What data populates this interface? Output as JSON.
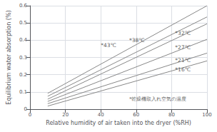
{
  "chart_data": {
    "type": "line",
    "xlabel": "Relative humidity of air taken into the dryer (%RH)",
    "ylabel": "Equilibrium water absorption (%)",
    "xlim": [
      0,
      100
    ],
    "ylim": [
      0,
      0.6
    ],
    "xticks": [
      0,
      20,
      40,
      60,
      80,
      100
    ],
    "yticks": [
      0,
      0.1,
      0.2,
      0.3,
      0.4,
      0.5,
      0.6
    ],
    "grid": true,
    "series": [
      {
        "x": [
          10,
          100
        ],
        "values": [
          0.092,
          0.6
        ],
        "color": "#888888"
      },
      {
        "x": [
          10,
          100
        ],
        "values": [
          0.075,
          0.535
        ],
        "color": "#888888"
      },
      {
        "x": [
          10,
          100
        ],
        "values": [
          0.058,
          0.495
        ],
        "color": "#888888"
      },
      {
        "x": [
          10,
          100
        ],
        "values": [
          0.045,
          0.405
        ],
        "color": "#888888"
      },
      {
        "x": [
          10,
          100
        ],
        "values": [
          0.032,
          0.325
        ],
        "color": "#888888"
      },
      {
        "x": [
          10,
          100
        ],
        "values": [
          0.018,
          0.28
        ],
        "color": "#888888"
      }
    ],
    "annotations": [
      {
        "text": "*43℃",
        "x": 40,
        "y": 0.37
      },
      {
        "text": "*38℃",
        "x": 56,
        "y": 0.4
      },
      {
        "text": "*32℃",
        "x": 82,
        "y": 0.44
      },
      {
        "text": "*27℃",
        "x": 82,
        "y": 0.36
      },
      {
        "text": "*21℃",
        "x": 82,
        "y": 0.285
      },
      {
        "text": "*16℃",
        "x": 82,
        "y": 0.228
      },
      {
        "text": "*乾燥機取入れ空気の温度",
        "x": 56,
        "y": 0.045
      }
    ]
  }
}
